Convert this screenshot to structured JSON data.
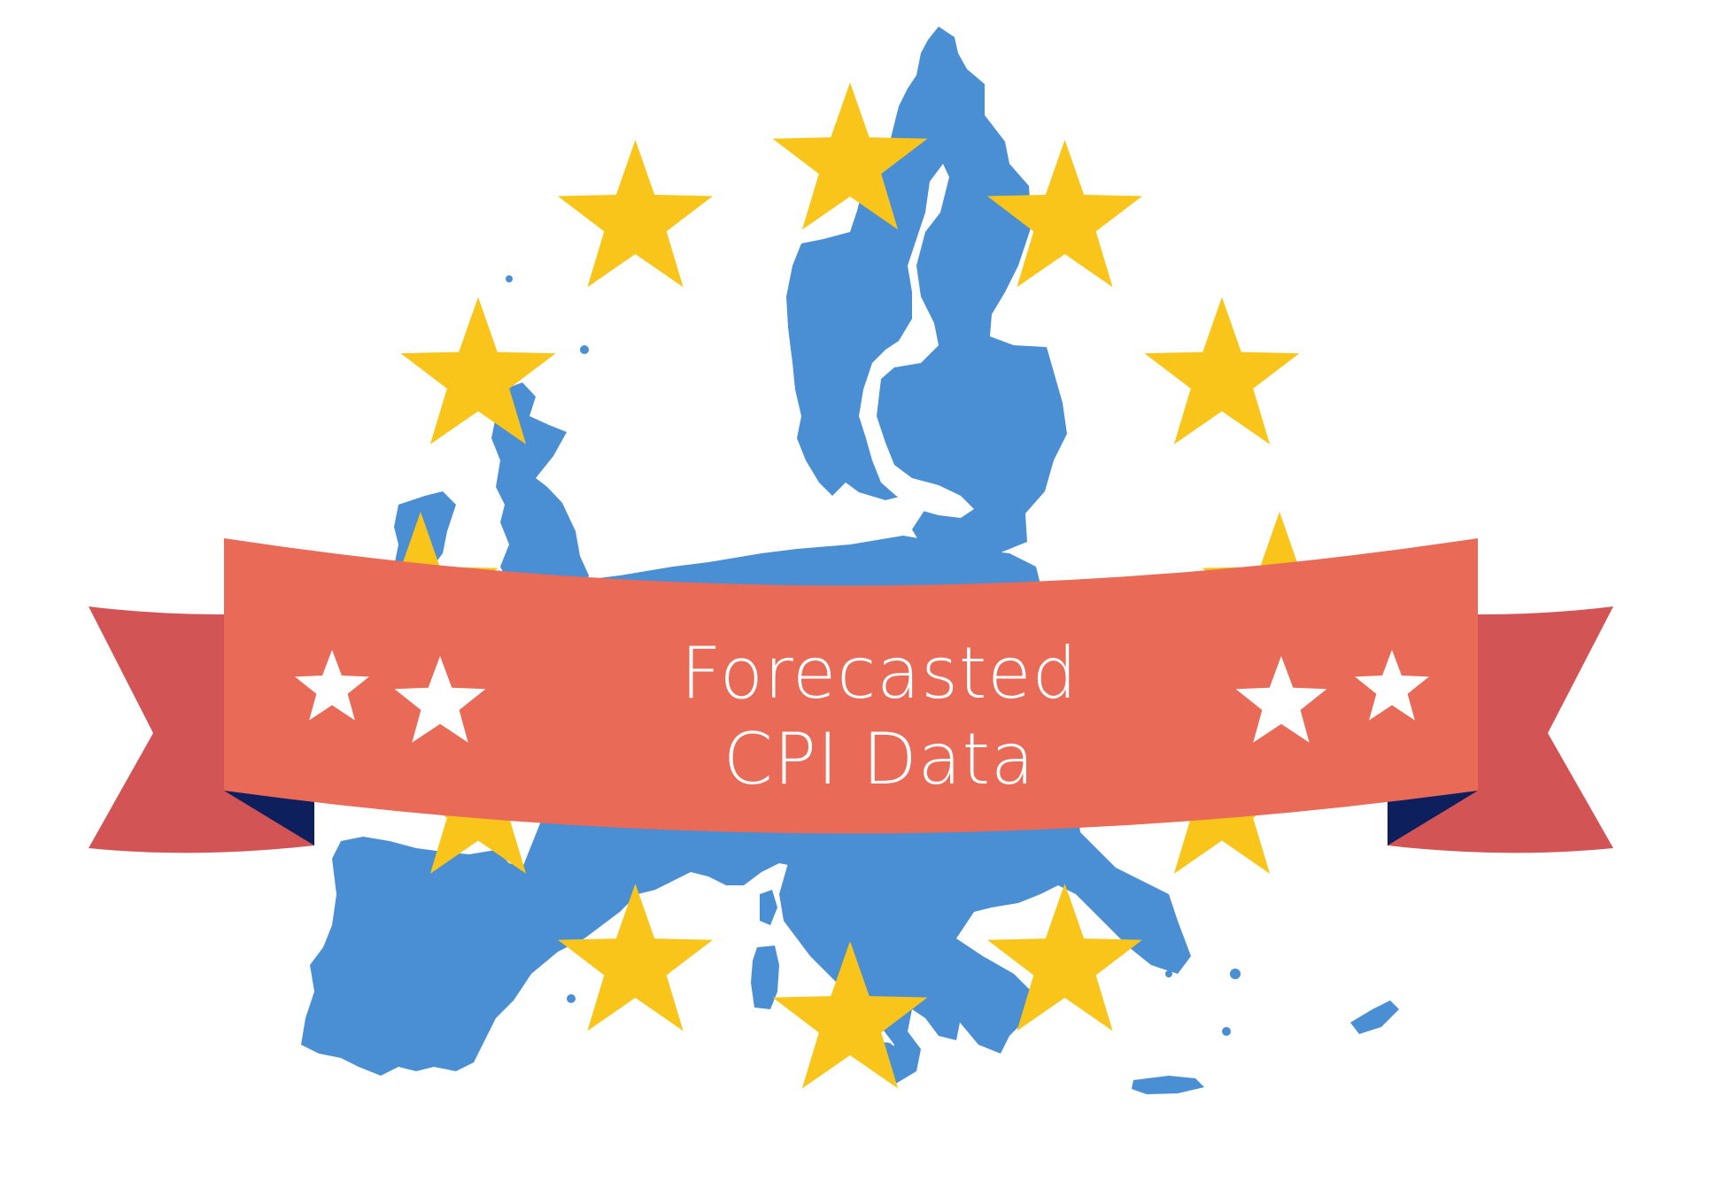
{
  "banner": {
    "title_line1": "Forecasted",
    "title_line2": "CPI Data"
  },
  "colors": {
    "background": "#ffffff",
    "map_blue": "#4a8ed4",
    "eu_star_yellow": "#f9c51b",
    "banner_main": "#e96a57",
    "banner_tail": "#d35454",
    "banner_fold_navy": "#0d1f5c",
    "banner_star": "#ffffff",
    "banner_text": "#ffffff"
  },
  "graphics": {
    "map": "europe-map-silhouette",
    "eu_star_count": 12,
    "banner_star_count": 4
  }
}
